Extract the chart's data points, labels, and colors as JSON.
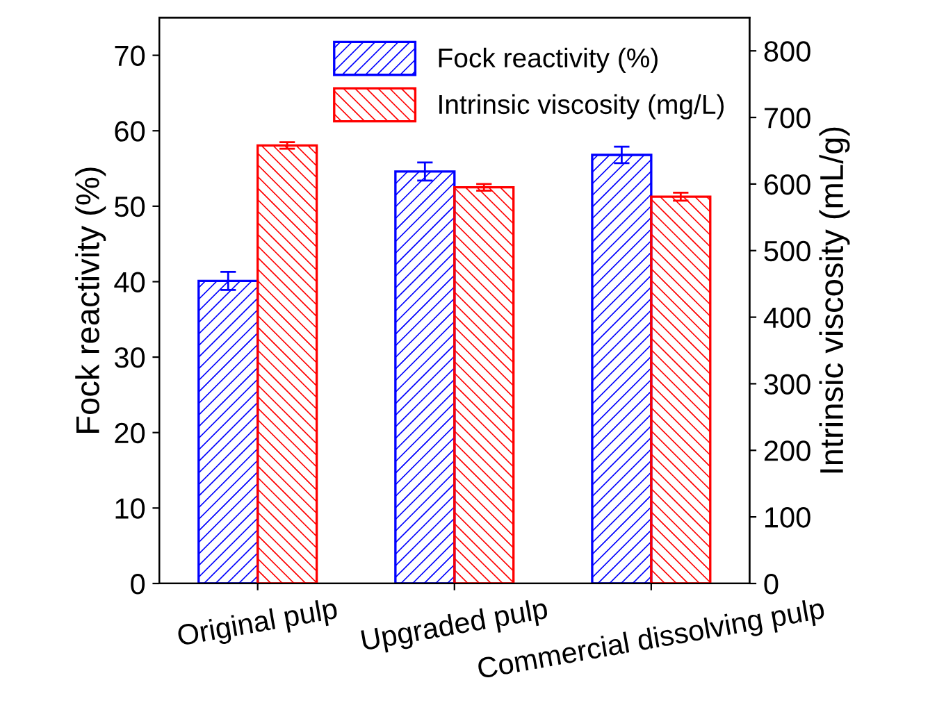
{
  "chart_data": {
    "type": "bar",
    "xlabel": null,
    "ylabel": "Fock reactivity (%)",
    "y2label": "Intrinsic viscosity (mL/g)",
    "categories": [
      "Original pulp",
      "Upgraded pulp",
      "Commercial dissolving pulp"
    ],
    "series": [
      {
        "name": "Fock reactivity (%)",
        "color": "#0000ff",
        "values": [
          40.1,
          54.6,
          56.8
        ],
        "errors": [
          1.2,
          1.2,
          1.1
        ]
      },
      {
        "name": "Intrinsic viscosity (mg/L)",
        "color": "#ff0000",
        "axis": "y2",
        "values": [
          658,
          595,
          581
        ],
        "errors": [
          5,
          5,
          6
        ]
      }
    ],
    "ylim": [
      0,
      75
    ],
    "yticks": [
      0,
      10,
      20,
      30,
      40,
      50,
      60,
      70
    ],
    "y2lim": [
      0,
      850
    ],
    "y2ticks": [
      0,
      100,
      200,
      300,
      400,
      500,
      600,
      700,
      800
    ],
    "grid": false,
    "legend": "top right"
  }
}
